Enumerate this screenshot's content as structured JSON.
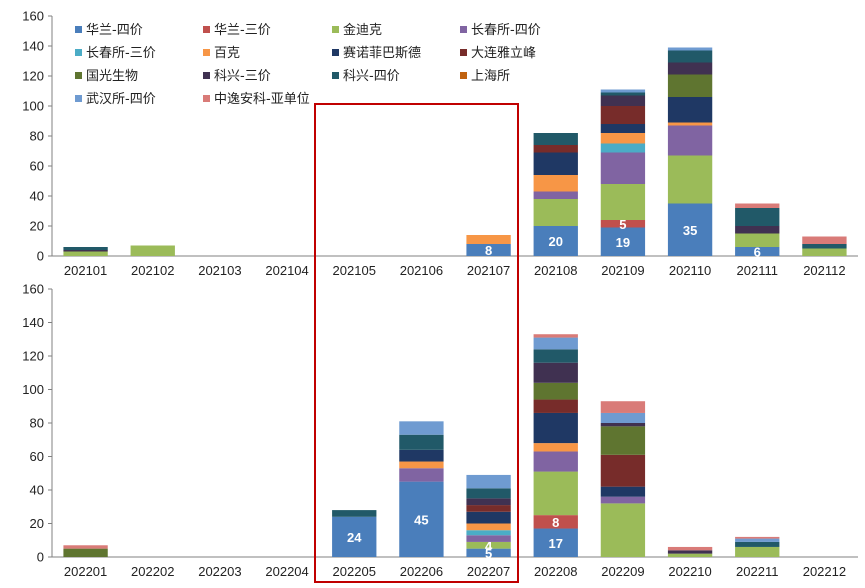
{
  "chart_data": [
    {
      "type": "bar",
      "stacked": true,
      "categories": [
        "202101",
        "202102",
        "202103",
        "202104",
        "202105",
        "202106",
        "202107",
        "202108",
        "202109",
        "202110",
        "202111",
        "202112"
      ],
      "ylim": [
        0,
        160
      ],
      "yticks": [
        0,
        20,
        40,
        60,
        80,
        100,
        120,
        140,
        160
      ],
      "legend": "top-left",
      "series": [
        {
          "name": "华兰-四价",
          "color": "#4a7ebb",
          "values": [
            0,
            0,
            0,
            0,
            0,
            0,
            8,
            20,
            19,
            35,
            6,
            0
          ]
        },
        {
          "name": "华兰-三价",
          "color": "#c0504d",
          "values": [
            0,
            0,
            0,
            0,
            0,
            0,
            0,
            0,
            5,
            0,
            0,
            0
          ]
        },
        {
          "name": "金迪克",
          "color": "#9bbb59",
          "values": [
            3,
            7,
            0,
            0,
            0,
            0,
            0,
            18,
            24,
            32,
            9,
            5
          ]
        },
        {
          "name": "长春所-四价",
          "color": "#8064a2",
          "values": [
            0,
            0,
            0,
            0,
            0,
            0,
            0,
            5,
            21,
            20,
            0,
            0
          ]
        },
        {
          "name": "长春所-三价",
          "color": "#4bacc6",
          "values": [
            0,
            0,
            0,
            0,
            0,
            0,
            0,
            0,
            6,
            0,
            0,
            0
          ]
        },
        {
          "name": "百克",
          "color": "#f79646",
          "values": [
            0,
            0,
            0,
            0,
            0,
            0,
            6,
            11,
            7,
            2,
            0,
            0
          ]
        },
        {
          "name": "赛诺菲巴斯德",
          "color": "#1f3864",
          "values": [
            0,
            0,
            0,
            0,
            0,
            0,
            0,
            15,
            6,
            17,
            0,
            0
          ]
        },
        {
          "name": "大连雅立峰",
          "color": "#772c2a",
          "values": [
            0,
            0,
            0,
            0,
            0,
            0,
            0,
            5,
            12,
            0,
            0,
            0
          ]
        },
        {
          "name": "国光生物",
          "color": "#5f7530",
          "values": [
            0,
            0,
            0,
            0,
            0,
            0,
            0,
            0,
            0,
            15,
            0,
            0
          ]
        },
        {
          "name": "科兴-三价",
          "color": "#403151",
          "values": [
            1,
            0,
            0,
            0,
            0,
            0,
            0,
            0,
            7,
            8,
            5,
            0
          ]
        },
        {
          "name": "科兴-四价",
          "color": "#215968",
          "values": [
            2,
            0,
            0,
            0,
            0,
            0,
            0,
            8,
            2,
            8,
            12,
            3
          ]
        },
        {
          "name": "上海所",
          "color": "#c0620f",
          "values": [
            0,
            0,
            0,
            0,
            0,
            0,
            0,
            0,
            0,
            0,
            0,
            0
          ]
        },
        {
          "name": "武汉所-四价",
          "color": "#6f9bd1",
          "values": [
            0,
            0,
            0,
            0,
            0,
            0,
            0,
            0,
            2,
            2,
            0,
            0
          ]
        },
        {
          "name": "中逸安科-亚单位",
          "color": "#d97b78",
          "values": [
            0,
            0,
            0,
            0,
            0,
            0,
            0,
            0,
            0,
            0,
            3,
            5
          ]
        }
      ],
      "data_labels": [
        {
          "category": "202107",
          "series": "华兰-四价",
          "text": "8"
        },
        {
          "category": "202108",
          "series": "华兰-四价",
          "text": "20"
        },
        {
          "category": "202109",
          "series": "华兰-四价",
          "text": "19"
        },
        {
          "category": "202109",
          "series": "华兰-三价",
          "text": "5"
        },
        {
          "category": "202110",
          "series": "华兰-四价",
          "text": "35"
        },
        {
          "category": "202111",
          "series": "华兰-四价",
          "text": "6"
        }
      ]
    },
    {
      "type": "bar",
      "stacked": true,
      "categories": [
        "202201",
        "202202",
        "202203",
        "202204",
        "202205",
        "202206",
        "202207",
        "202208",
        "202209",
        "202210",
        "202211",
        "202212"
      ],
      "ylim": [
        0,
        160
      ],
      "yticks": [
        0,
        20,
        40,
        60,
        80,
        100,
        120,
        140,
        160
      ],
      "series": [
        {
          "name": "华兰-四价",
          "color": "#4a7ebb",
          "values": [
            0,
            0,
            0,
            0,
            24,
            45,
            5,
            17,
            0,
            0,
            0,
            0
          ]
        },
        {
          "name": "华兰-三价",
          "color": "#c0504d",
          "values": [
            0,
            0,
            0,
            0,
            0,
            0,
            0,
            8,
            0,
            0,
            0,
            0
          ]
        },
        {
          "name": "金迪克",
          "color": "#9bbb59",
          "values": [
            0,
            0,
            0,
            0,
            0,
            0,
            4,
            26,
            32,
            2,
            6,
            0
          ]
        },
        {
          "name": "长春所-四价",
          "color": "#8064a2",
          "values": [
            0,
            0,
            0,
            0,
            0,
            8,
            4,
            12,
            4,
            0,
            0,
            0
          ]
        },
        {
          "name": "长春所-三价",
          "color": "#4bacc6",
          "values": [
            0,
            0,
            0,
            0,
            0,
            0,
            3,
            0,
            0,
            0,
            0,
            0
          ]
        },
        {
          "name": "百克",
          "color": "#f79646",
          "values": [
            0,
            0,
            0,
            0,
            0,
            4,
            4,
            5,
            0,
            0,
            0,
            0
          ]
        },
        {
          "name": "赛诺菲巴斯德",
          "color": "#1f3864",
          "values": [
            0,
            0,
            0,
            0,
            0,
            7,
            7,
            18,
            6,
            0,
            0,
            0
          ]
        },
        {
          "name": "大连雅立峰",
          "color": "#772c2a",
          "values": [
            0,
            0,
            0,
            0,
            0,
            0,
            4,
            8,
            19,
            0,
            0,
            0
          ]
        },
        {
          "name": "国光生物",
          "color": "#5f7530",
          "values": [
            5,
            0,
            0,
            0,
            0,
            0,
            0,
            10,
            17,
            0,
            0,
            0
          ]
        },
        {
          "name": "科兴-三价",
          "color": "#403151",
          "values": [
            0,
            0,
            0,
            0,
            0,
            0,
            4,
            12,
            2,
            2,
            0,
            0
          ]
        },
        {
          "name": "科兴-四价",
          "color": "#215968",
          "values": [
            0,
            0,
            0,
            0,
            4,
            9,
            6,
            8,
            0,
            0,
            3,
            0
          ]
        },
        {
          "name": "上海所",
          "color": "#c0620f",
          "values": [
            0,
            0,
            0,
            0,
            0,
            0,
            0,
            0,
            0,
            0,
            0,
            0
          ]
        },
        {
          "name": "武汉所-四价",
          "color": "#6f9bd1",
          "values": [
            0,
            0,
            0,
            0,
            0,
            8,
            8,
            7,
            6,
            0,
            2,
            0
          ]
        },
        {
          "name": "中逸安科-亚单位",
          "color": "#d97b78",
          "values": [
            2,
            0,
            0,
            0,
            0,
            0,
            0,
            2,
            7,
            2,
            1,
            0
          ]
        }
      ],
      "data_labels": [
        {
          "category": "202205",
          "series": "华兰-四价",
          "text": "24"
        },
        {
          "category": "202206",
          "series": "华兰-四价",
          "text": "45"
        },
        {
          "category": "202207",
          "series": "华兰-四价",
          "text": "5"
        },
        {
          "category": "202207",
          "series": "金迪克",
          "text": "4"
        },
        {
          "category": "202208",
          "series": "华兰-四价",
          "text": "17"
        },
        {
          "category": "202208",
          "series": "华兰-三价",
          "text": "8"
        }
      ]
    }
  ]
}
